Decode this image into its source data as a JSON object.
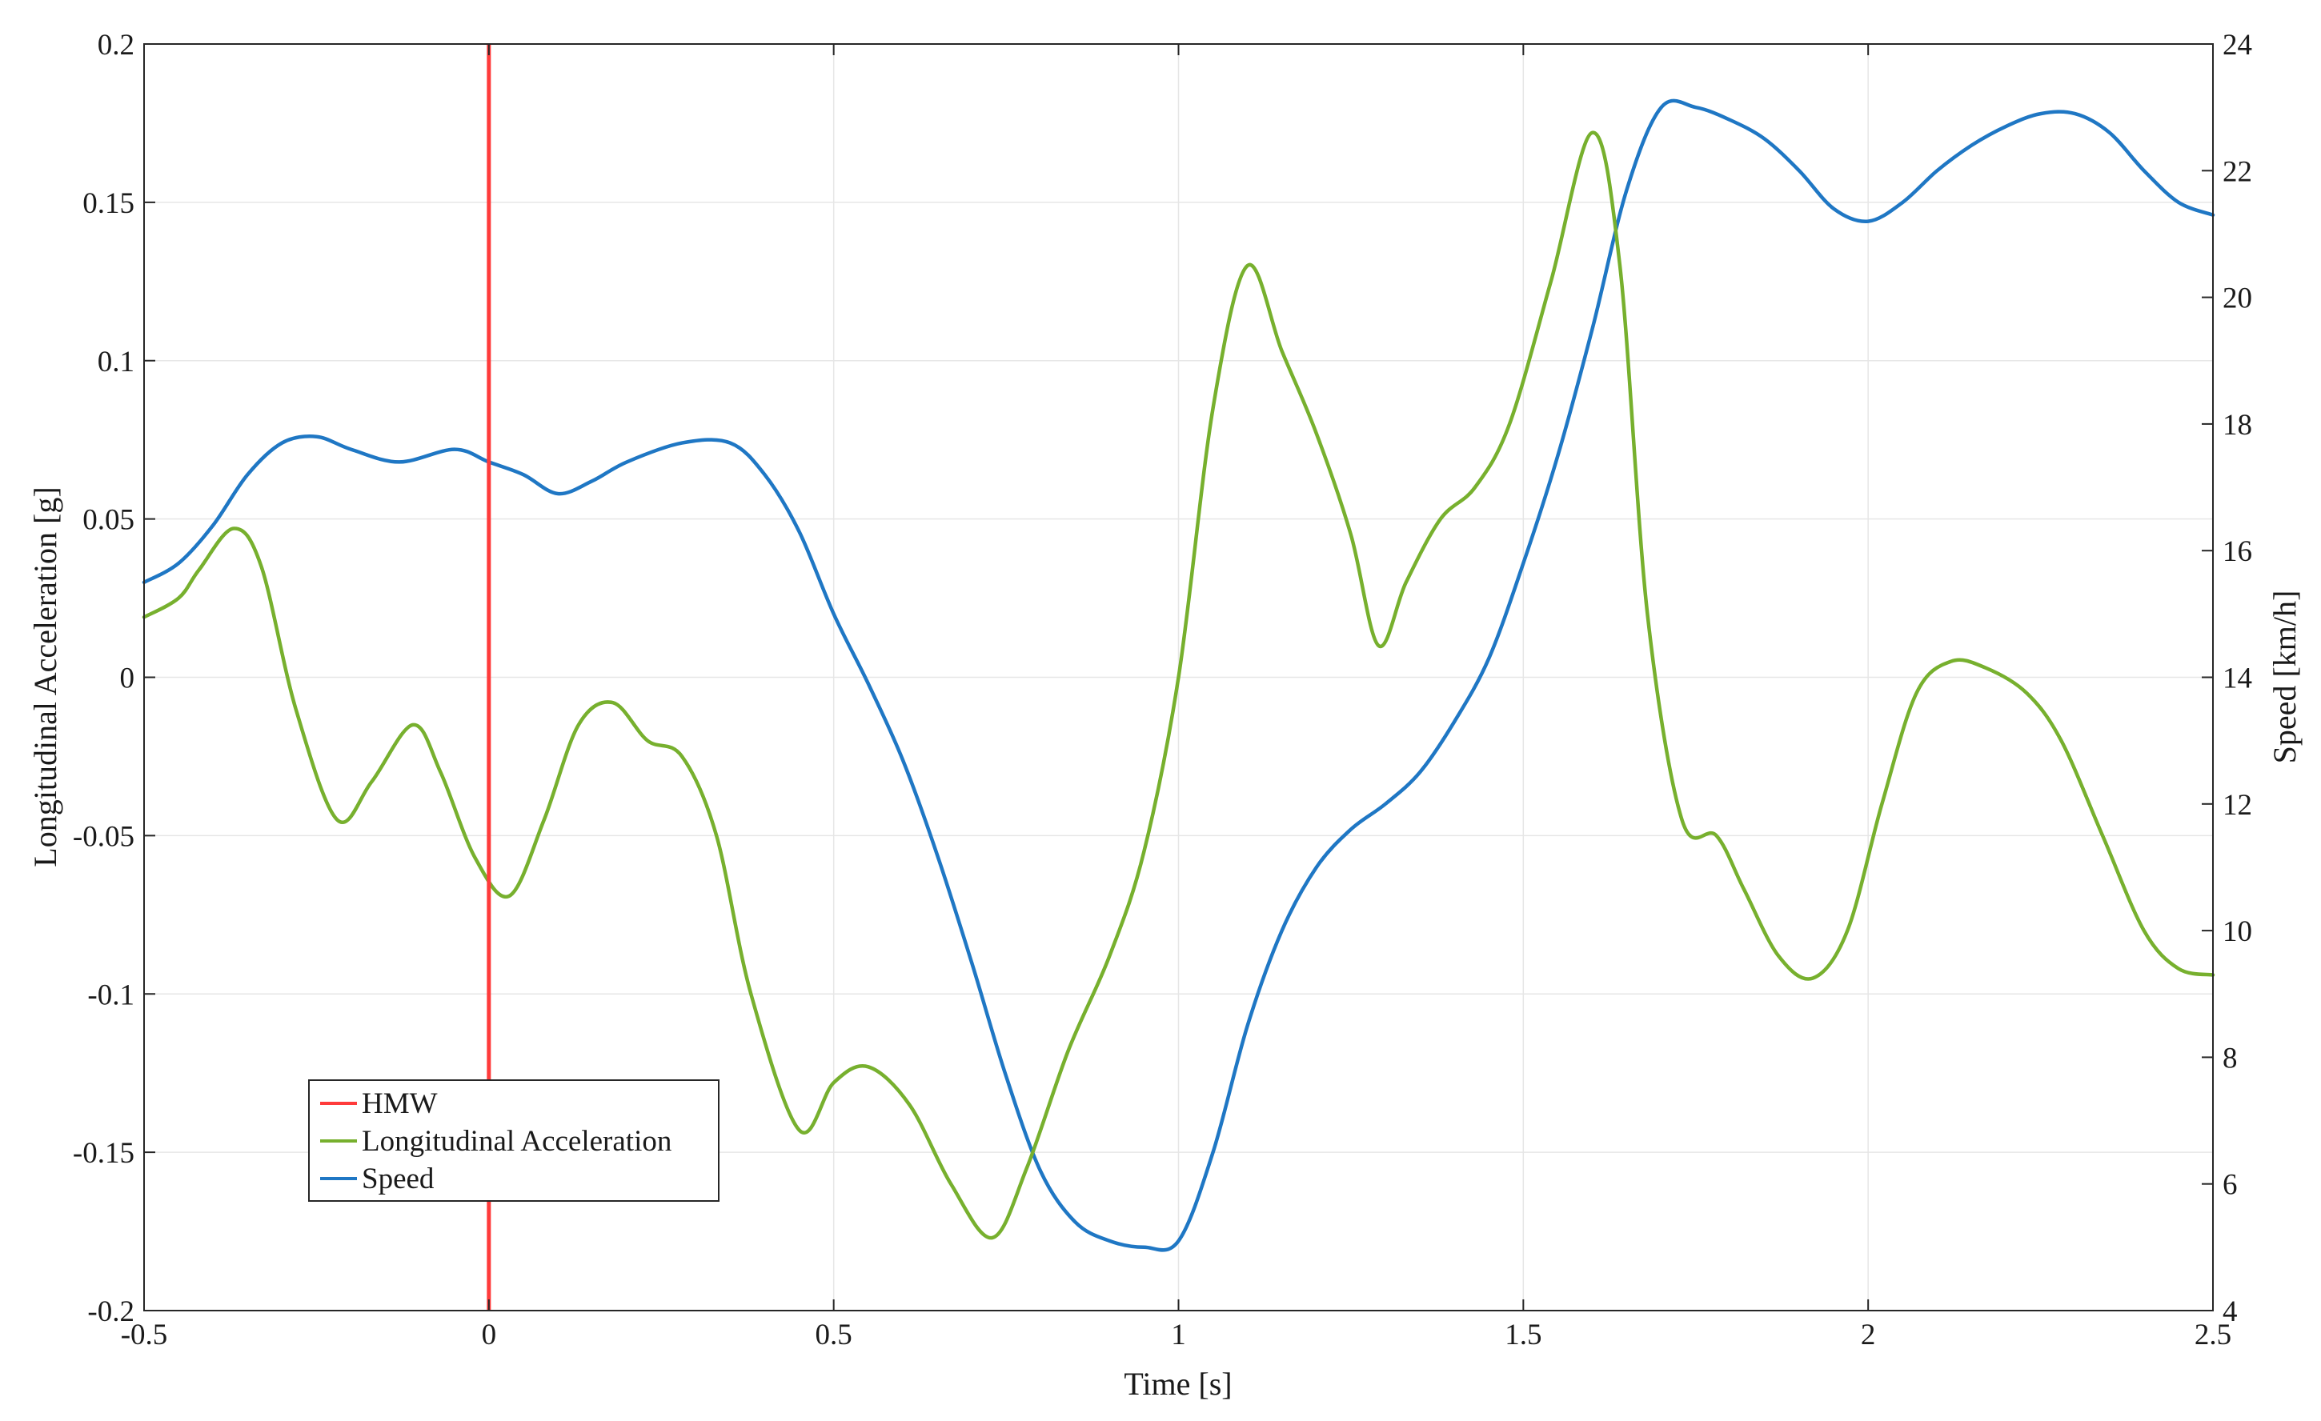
{
  "chart_data": {
    "type": "line",
    "xlabel": "Time [s]",
    "ylabel_left": "Longitudinal Acceleration [g]",
    "ylabel_right": "Speed [km/h]",
    "xlim": [
      -0.5,
      2.5
    ],
    "ylim_left": [
      -0.2,
      0.2
    ],
    "ylim_right": [
      4,
      24
    ],
    "x_ticks": [
      -0.5,
      0,
      0.5,
      1,
      1.5,
      2,
      2.5
    ],
    "x_tick_labels": [
      "-0.5",
      "0",
      "0.5",
      "1",
      "1.5",
      "2",
      "2.5"
    ],
    "y_left_ticks": [
      -0.2,
      -0.15,
      -0.1,
      -0.05,
      0,
      0.05,
      0.1,
      0.15,
      0.2
    ],
    "y_left_tick_labels": [
      "-0.2",
      "-0.15",
      "-0.1",
      "-0.05",
      "0",
      "0.05",
      "0.1",
      "0.15",
      "0.2"
    ],
    "y_right_ticks": [
      4,
      6,
      8,
      10,
      12,
      14,
      16,
      18,
      20,
      22,
      24
    ],
    "y_right_tick_labels": [
      "4",
      "6",
      "8",
      "10",
      "12",
      "14",
      "16",
      "18",
      "20",
      "22",
      "24"
    ],
    "grid": true,
    "legend_position": "bottom-left",
    "series": [
      {
        "name": "HMW",
        "axis": "left",
        "color": "#ff3b3b",
        "kind": "vertical-line",
        "x": [
          0,
          0
        ],
        "values": [
          -0.2,
          0.2
        ]
      },
      {
        "name": "Longitudinal Acceleration",
        "axis": "left",
        "color": "#77b02e",
        "x": [
          -0.5,
          -0.45,
          -0.42,
          -0.37,
          -0.33,
          -0.28,
          -0.22,
          -0.17,
          -0.11,
          -0.07,
          -0.02,
          0.03,
          0.08,
          0.13,
          0.18,
          0.23,
          0.28,
          0.33,
          0.38,
          0.45,
          0.5,
          0.55,
          0.61,
          0.67,
          0.73,
          0.78,
          0.84,
          0.9,
          0.95,
          1.0,
          1.05,
          1.1,
          1.15,
          1.2,
          1.25,
          1.29,
          1.33,
          1.38,
          1.43,
          1.48,
          1.54,
          1.6,
          1.64,
          1.68,
          1.73,
          1.78,
          1.82,
          1.87,
          1.92,
          1.97,
          2.02,
          2.07,
          2.12,
          2.17,
          2.23,
          2.28,
          2.34,
          2.4,
          2.45,
          2.5
        ],
        "values": [
          0.019,
          0.025,
          0.034,
          0.047,
          0.035,
          -0.01,
          -0.045,
          -0.033,
          -0.015,
          -0.03,
          -0.057,
          -0.069,
          -0.045,
          -0.015,
          -0.008,
          -0.02,
          -0.025,
          -0.05,
          -0.1,
          -0.143,
          -0.128,
          -0.123,
          -0.135,
          -0.16,
          -0.177,
          -0.155,
          -0.118,
          -0.088,
          -0.055,
          0.0,
          0.085,
          0.13,
          0.103,
          0.077,
          0.045,
          0.01,
          0.03,
          0.05,
          0.06,
          0.08,
          0.125,
          0.172,
          0.13,
          0.02,
          -0.045,
          -0.05,
          -0.067,
          -0.088,
          -0.095,
          -0.08,
          -0.04,
          -0.005,
          0.005,
          0.003,
          -0.005,
          -0.02,
          -0.05,
          -0.08,
          -0.092,
          -0.094
        ]
      },
      {
        "name": "Speed",
        "axis": "right",
        "color": "#1f77c4",
        "x": [
          -0.5,
          -0.45,
          -0.4,
          -0.35,
          -0.3,
          -0.25,
          -0.2,
          -0.13,
          -0.05,
          0.0,
          0.05,
          0.1,
          0.15,
          0.2,
          0.28,
          0.35,
          0.4,
          0.45,
          0.5,
          0.55,
          0.6,
          0.65,
          0.7,
          0.75,
          0.8,
          0.85,
          0.9,
          0.95,
          1.0,
          1.05,
          1.1,
          1.15,
          1.2,
          1.25,
          1.3,
          1.35,
          1.4,
          1.45,
          1.5,
          1.55,
          1.6,
          1.65,
          1.7,
          1.75,
          1.8,
          1.85,
          1.9,
          1.95,
          2.0,
          2.05,
          2.1,
          2.15,
          2.2,
          2.25,
          2.3,
          2.35,
          2.4,
          2.45,
          2.5
        ],
        "values": [
          15.5,
          15.8,
          16.4,
          17.2,
          17.7,
          17.8,
          17.6,
          17.4,
          17.6,
          17.4,
          17.2,
          16.9,
          17.1,
          17.4,
          17.7,
          17.7,
          17.2,
          16.3,
          15.0,
          13.9,
          12.7,
          11.2,
          9.5,
          7.7,
          6.2,
          5.4,
          5.1,
          5.0,
          5.1,
          6.5,
          8.5,
          10.0,
          11.0,
          11.6,
          12.0,
          12.5,
          13.3,
          14.3,
          15.8,
          17.5,
          19.5,
          21.7,
          23.0,
          23.0,
          22.8,
          22.5,
          22.0,
          21.4,
          21.2,
          21.5,
          22.0,
          22.4,
          22.7,
          22.9,
          22.9,
          22.6,
          22.0,
          21.5,
          21.3
        ]
      }
    ]
  }
}
